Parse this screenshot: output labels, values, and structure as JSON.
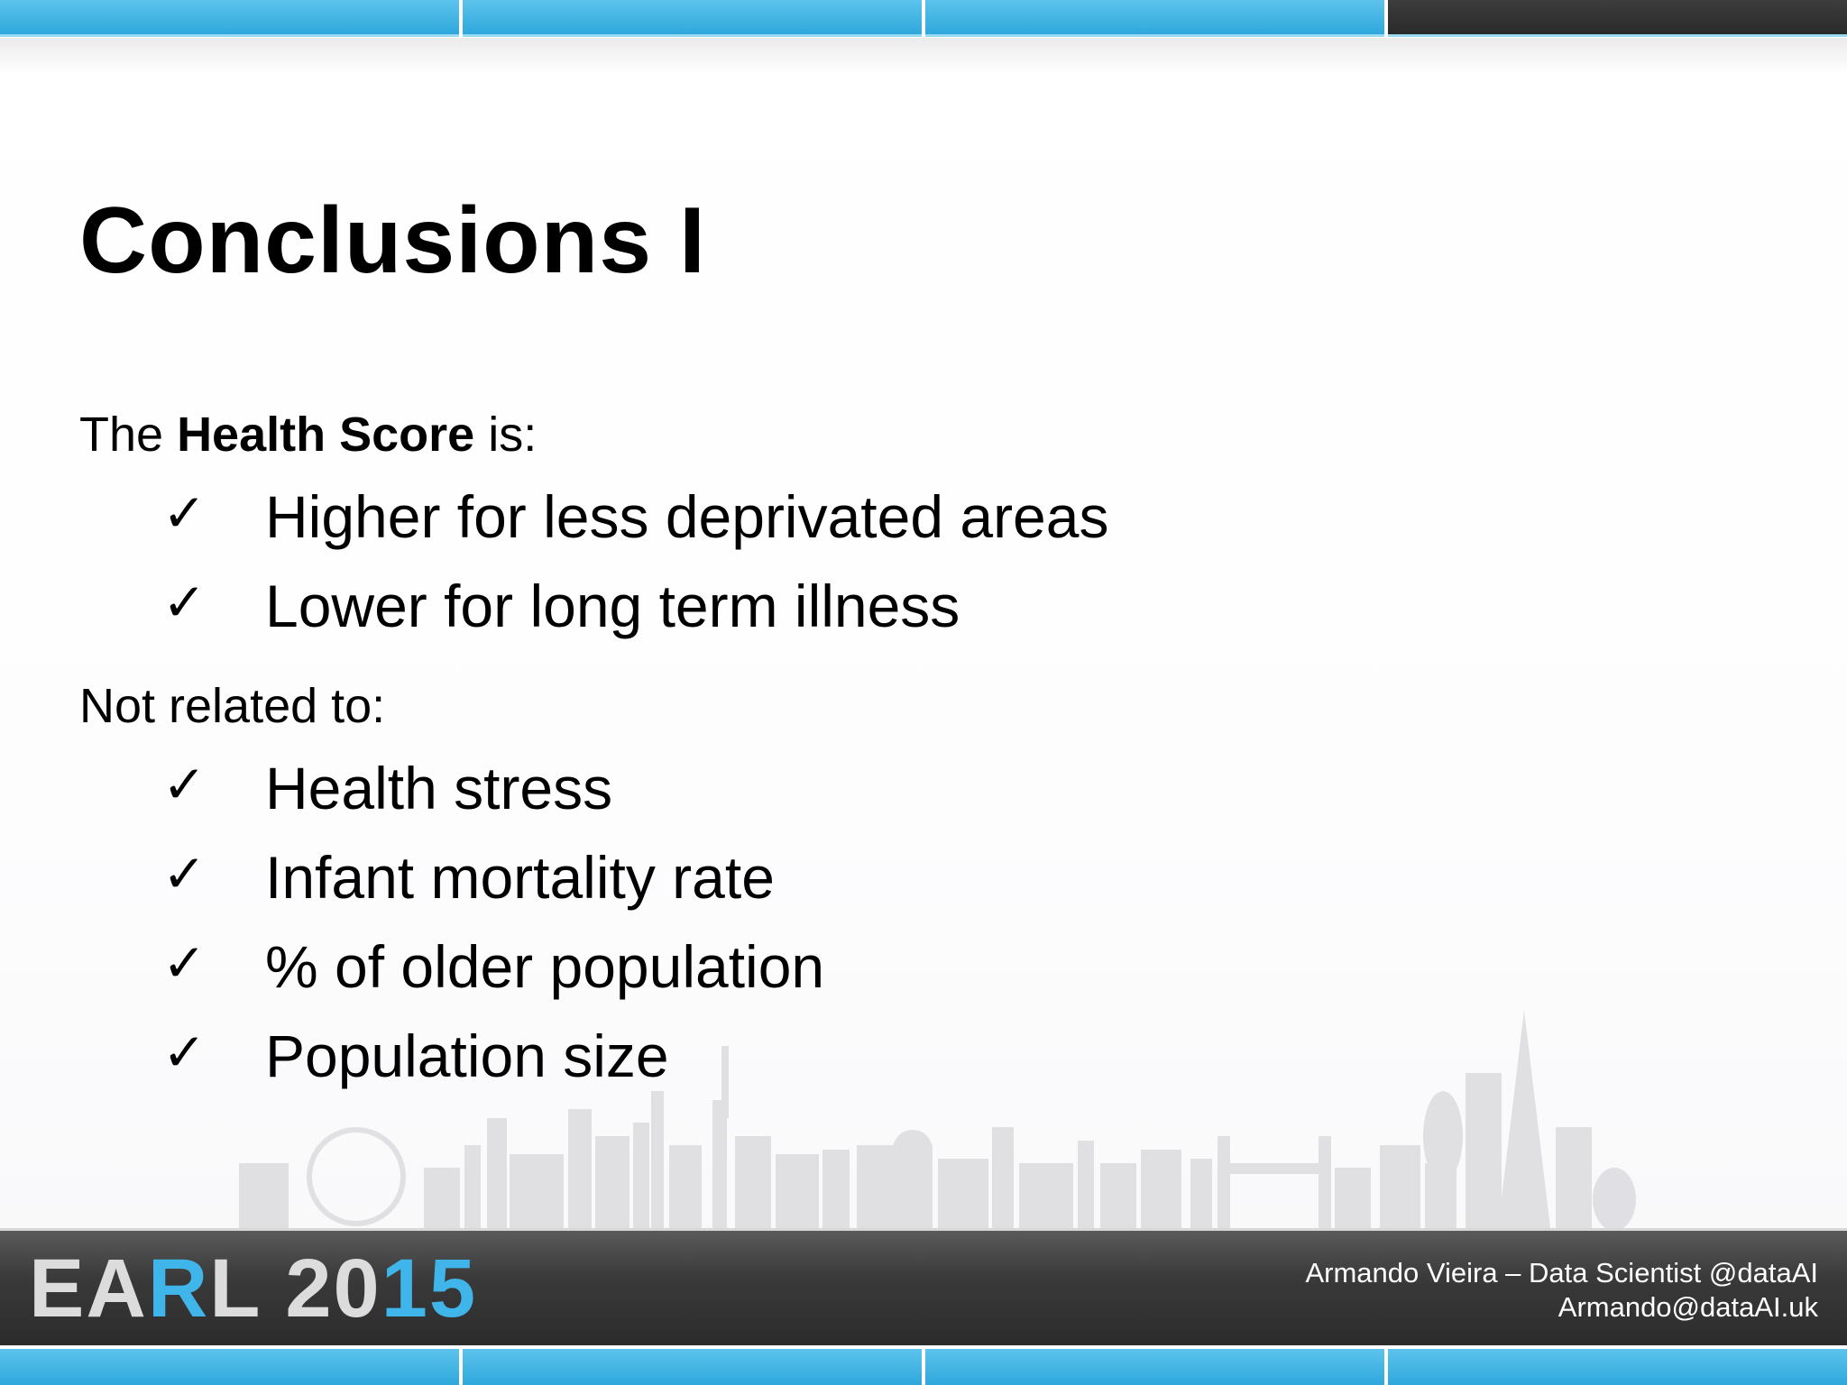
{
  "slide": {
    "title": "Conclusions I",
    "intro": {
      "prefix": "The ",
      "bold": "Health Score",
      "suffix": " is:"
    },
    "positive_items": [
      "Higher for less deprivated areas",
      "Lower for long term illness"
    ],
    "unrelated_label": "Not related to:",
    "unrelated_items": [
      "Health stress",
      "Infant mortality rate",
      "% of older population",
      "Population size"
    ],
    "check_glyph": "✓"
  },
  "footer": {
    "logo": {
      "part1": "EA",
      "part2": "R",
      "part3": "L ",
      "part4": "20",
      "part5": "15"
    },
    "author_line1": "Armando Vieira – Data Scientist @dataAI",
    "author_line2": "Armando@dataAI.uk"
  },
  "colors": {
    "accent_blue": "#2fa8dc",
    "footer_dark": "#2b2b2b",
    "skyline_gray": "#d9d9dc"
  }
}
